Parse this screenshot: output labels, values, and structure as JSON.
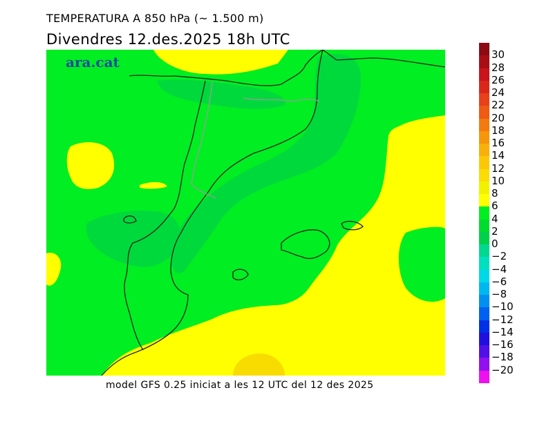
{
  "header": {
    "title": "TEMPERATURA A 850 hPa (~ 1.500 m)",
    "subtitle": "Divendres  12.des.2025 18h UTC"
  },
  "brand": {
    "text": "ara.cat",
    "color": "#1a4aa0"
  },
  "footer": {
    "text": "model GFS 0.25 iniciat a les 12 UTC del 12 des 2025"
  },
  "colorbar": {
    "labels": [
      "30",
      "28",
      "26",
      "24",
      "22",
      "20",
      "18",
      "16",
      "14",
      "12",
      "10",
      "8",
      "6",
      "4",
      "2",
      "0",
      "−2",
      "−4",
      "−6",
      "−8",
      "−10",
      "−12",
      "−14",
      "−16",
      "−18",
      "−20"
    ],
    "colors": [
      "#8b0a14",
      "#a80f14",
      "#c8141a",
      "#d9281a",
      "#e8401a",
      "#ef5a14",
      "#f37a10",
      "#f5960c",
      "#f8b00a",
      "#fbc808",
      "#fcdc06",
      "#f2f200",
      "#ffff00",
      "#00ee22",
      "#00dc2e",
      "#00d04a",
      "#00d890",
      "#00e0c0",
      "#00d8e8",
      "#00b8f0",
      "#0090f0",
      "#0060f0",
      "#0030e8",
      "#2010e0",
      "#5010e8",
      "#9010f0",
      "#ee10ee"
    ]
  },
  "map_colors": {
    "yellow": "#ffff00",
    "light_green": "#00ee22",
    "green": "#00dc3a",
    "mid_green": "#00d44a",
    "orange_yellow": "#f8dc00",
    "border": "#222222",
    "region_border": "#9a9a9a"
  }
}
